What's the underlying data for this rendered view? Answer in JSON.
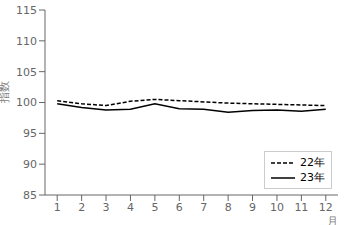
{
  "chart_data": {
    "type": "line",
    "xlabel": "月",
    "ylabel": "指数",
    "x": [
      1,
      2,
      3,
      4,
      5,
      6,
      7,
      8,
      9,
      10,
      11,
      12
    ],
    "xlim": [
      0.5,
      12.5
    ],
    "xticks": [
      1,
      2,
      3,
      4,
      5,
      6,
      7,
      8,
      9,
      10,
      11,
      12
    ],
    "ylim": [
      85,
      115
    ],
    "yticks": [
      85,
      90,
      95,
      100,
      105,
      110,
      115
    ],
    "series": [
      {
        "name": "22年",
        "color": "#000000",
        "line_style": "dashed",
        "values": [
          100.3,
          99.8,
          99.5,
          100.2,
          100.5,
          100.3,
          100.1,
          99.9,
          99.8,
          99.7,
          99.6,
          99.5
        ]
      },
      {
        "name": "23年",
        "color": "#000000",
        "line_style": "solid",
        "values": [
          99.8,
          99.2,
          98.8,
          98.9,
          99.8,
          99.0,
          98.9,
          98.4,
          98.7,
          98.8,
          98.6,
          98.9
        ]
      }
    ],
    "legend": "lower right",
    "grid": false
  }
}
